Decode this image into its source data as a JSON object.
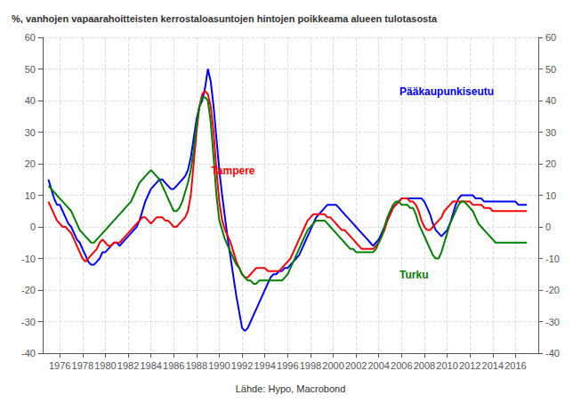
{
  "chart_data": {
    "type": "line",
    "title": "%, vanhojen vapaarahoitteisten kerrostaloasuntojen hintojen poikkeama alueen tulotasosta",
    "xlabel": "Lähde: Hypo, Macrobond",
    "xlim": [
      1974.5,
      2018.0
    ],
    "xticks": [
      1976,
      1978,
      1980,
      1982,
      1984,
      1986,
      1988,
      1990,
      1992,
      1994,
      1996,
      1998,
      2000,
      2002,
      2004,
      2006,
      2008,
      2010,
      2012,
      2014,
      2016
    ],
    "ylim": [
      -40,
      60
    ],
    "yticks": [
      -40,
      -30,
      -20,
      -10,
      0,
      10,
      20,
      30,
      40,
      50,
      60
    ],
    "y2lim": [
      -40,
      60
    ],
    "y2ticks": [
      -40,
      -30,
      -20,
      -10,
      0,
      10,
      20,
      30,
      40,
      50,
      60
    ],
    "grid": true,
    "x": [
      1975.0,
      1975.25,
      1975.5,
      1975.75,
      1976.0,
      1976.25,
      1976.5,
      1976.75,
      1977.0,
      1977.25,
      1977.5,
      1977.75,
      1978.0,
      1978.25,
      1978.5,
      1978.75,
      1979.0,
      1979.25,
      1979.5,
      1979.75,
      1980.0,
      1980.25,
      1980.5,
      1980.75,
      1981.0,
      1981.25,
      1981.5,
      1981.75,
      1982.0,
      1982.25,
      1982.5,
      1982.75,
      1983.0,
      1983.25,
      1983.5,
      1983.75,
      1984.0,
      1984.25,
      1984.5,
      1984.75,
      1985.0,
      1985.25,
      1985.5,
      1985.75,
      1986.0,
      1986.25,
      1986.5,
      1986.75,
      1987.0,
      1987.25,
      1987.5,
      1987.75,
      1988.0,
      1988.25,
      1988.5,
      1988.75,
      1989.0,
      1989.25,
      1989.5,
      1989.75,
      1990.0,
      1990.25,
      1990.5,
      1990.75,
      1991.0,
      1991.25,
      1991.5,
      1991.75,
      1992.0,
      1992.25,
      1992.5,
      1992.75,
      1993.0,
      1993.25,
      1993.5,
      1993.75,
      1994.0,
      1994.25,
      1994.5,
      1994.75,
      1995.0,
      1995.25,
      1995.5,
      1995.75,
      1996.0,
      1996.25,
      1996.5,
      1996.75,
      1997.0,
      1997.25,
      1997.5,
      1997.75,
      1998.0,
      1998.25,
      1998.5,
      1998.75,
      1999.0,
      1999.25,
      1999.5,
      1999.75,
      2000.0,
      2000.25,
      2000.5,
      2000.75,
      2001.0,
      2001.25,
      2001.5,
      2001.75,
      2002.0,
      2002.25,
      2002.5,
      2002.75,
      2003.0,
      2003.25,
      2003.5,
      2003.75,
      2004.0,
      2004.25,
      2004.5,
      2004.75,
      2005.0,
      2005.25,
      2005.5,
      2005.75,
      2006.0,
      2006.25,
      2006.5,
      2006.75,
      2007.0,
      2007.25,
      2007.5,
      2007.75,
      2008.0,
      2008.25,
      2008.5,
      2008.75,
      2009.0,
      2009.25,
      2009.5,
      2009.75,
      2010.0,
      2010.25,
      2010.5,
      2010.75,
      2011.0,
      2011.25,
      2011.5,
      2011.75,
      2012.0,
      2012.25,
      2012.5,
      2012.75,
      2013.0,
      2013.25,
      2013.5,
      2013.75,
      2014.0,
      2014.25,
      2014.5,
      2014.75,
      2015.0,
      2015.25,
      2015.5,
      2015.75,
      2016.0,
      2016.25,
      2016.5,
      2016.75,
      2017.0
    ],
    "series": [
      {
        "name": "Pääkaupunkiseutu",
        "color": "#0000ff",
        "values": [
          15,
          12,
          9,
          7,
          7,
          5,
          3,
          1,
          0,
          -2,
          -4,
          -5,
          -7,
          -9,
          -11,
          -12,
          -12,
          -11,
          -10,
          -8,
          -8,
          -7,
          -6,
          -5,
          -5,
          -6,
          -5,
          -4,
          -3,
          -2,
          -1,
          0,
          2,
          5,
          8,
          10,
          12,
          13,
          14,
          15,
          15,
          14,
          13,
          12,
          12,
          13,
          14,
          15,
          16,
          18,
          22,
          28,
          34,
          38,
          40,
          44,
          50,
          46,
          38,
          28,
          18,
          10,
          3,
          -4,
          -10,
          -16,
          -22,
          -27,
          -32,
          -33,
          -32,
          -30,
          -28,
          -26,
          -24,
          -22,
          -20,
          -18,
          -16,
          -15,
          -15,
          -14,
          -14,
          -13,
          -13,
          -12,
          -11,
          -10,
          -9,
          -7,
          -5,
          -3,
          -1,
          1,
          3,
          4,
          5,
          6,
          7,
          7,
          7,
          7,
          6,
          5,
          4,
          3,
          2,
          1,
          0,
          -1,
          -2,
          -3,
          -4,
          -5,
          -6,
          -5,
          -4,
          -2,
          0,
          2,
          4,
          6,
          7,
          8,
          9,
          9,
          9,
          9,
          9,
          9,
          9,
          9,
          8,
          6,
          4,
          1,
          -1,
          -2,
          -3,
          -2,
          -1,
          1,
          4,
          7,
          9,
          10,
          10,
          10,
          10,
          10,
          9,
          9,
          9,
          8,
          8,
          8,
          8,
          8,
          8,
          8,
          8,
          8,
          8,
          8,
          8,
          7,
          7,
          7,
          7
        ]
      },
      {
        "name": "Tampere",
        "color": "#ff0000",
        "values": [
          8,
          6,
          4,
          2,
          1,
          0,
          0,
          -1,
          -2,
          -4,
          -6,
          -8,
          -10,
          -11,
          -10,
          -9,
          -8,
          -7,
          -5,
          -4,
          -5,
          -6,
          -6,
          -5,
          -5,
          -5,
          -4,
          -3,
          -2,
          -1,
          0,
          1,
          2,
          3,
          3,
          2,
          1,
          2,
          3,
          3,
          3,
          2,
          2,
          1,
          0,
          0,
          1,
          2,
          3,
          5,
          10,
          20,
          30,
          38,
          42,
          43,
          42,
          38,
          30,
          18,
          8,
          2,
          -1,
          -3,
          -5,
          -8,
          -11,
          -13,
          -15,
          -16,
          -16,
          -15,
          -14,
          -13,
          -13,
          -13,
          -13,
          -14,
          -14,
          -14,
          -14,
          -14,
          -13,
          -12,
          -11,
          -10,
          -8,
          -6,
          -4,
          -2,
          0,
          2,
          3,
          4,
          4,
          4,
          4,
          4,
          3,
          3,
          2,
          1,
          0,
          -1,
          -1,
          -2,
          -3,
          -4,
          -5,
          -6,
          -7,
          -7,
          -7,
          -7,
          -7,
          -6,
          -5,
          -3,
          -1,
          2,
          4,
          6,
          7,
          8,
          9,
          9,
          9,
          8,
          8,
          7,
          5,
          2,
          0,
          -1,
          -1,
          0,
          1,
          2,
          3,
          5,
          6,
          7,
          8,
          8,
          8,
          8,
          8,
          8,
          8,
          7,
          7,
          7,
          7,
          6,
          6,
          6,
          5,
          5,
          5,
          5,
          5,
          5,
          5,
          5,
          5,
          5,
          5,
          5,
          5
        ]
      },
      {
        "name": "Turku",
        "color": "#008000",
        "values": [
          13,
          12,
          11,
          10,
          9,
          8,
          7,
          6,
          5,
          3,
          1,
          -1,
          -2,
          -3,
          -4,
          -5,
          -5,
          -4,
          -3,
          -2,
          -1,
          0,
          1,
          2,
          3,
          4,
          5,
          6,
          7,
          8,
          10,
          12,
          14,
          15,
          16,
          17,
          18,
          17,
          16,
          15,
          13,
          11,
          9,
          7,
          5,
          5,
          6,
          8,
          11,
          14,
          18,
          24,
          32,
          38,
          41,
          41,
          40,
          33,
          22,
          10,
          2,
          -1,
          -4,
          -6,
          -8,
          -10,
          -12,
          -13,
          -15,
          -16,
          -17,
          -17,
          -18,
          -18,
          -17,
          -17,
          -17,
          -17,
          -17,
          -17,
          -17,
          -17,
          -17,
          -16,
          -15,
          -13,
          -11,
          -9,
          -7,
          -5,
          -3,
          -1,
          0,
          1,
          2,
          2,
          2,
          2,
          1,
          0,
          -1,
          -2,
          -3,
          -4,
          -5,
          -6,
          -7,
          -7,
          -8,
          -8,
          -8,
          -8,
          -8,
          -8,
          -8,
          -7,
          -5,
          -3,
          0,
          3,
          5,
          7,
          8,
          8,
          7,
          7,
          7,
          6,
          6,
          4,
          1,
          -1,
          -3,
          -5,
          -7,
          -9,
          -10,
          -10,
          -8,
          -5,
          -2,
          1,
          3,
          5,
          7,
          8,
          8,
          7,
          6,
          5,
          3,
          1,
          0,
          -1,
          -2,
          -3,
          -4,
          -5,
          -5,
          -5,
          -5,
          -5,
          -5,
          -5,
          -5,
          -5,
          -5,
          -5,
          -5
        ]
      }
    ]
  }
}
